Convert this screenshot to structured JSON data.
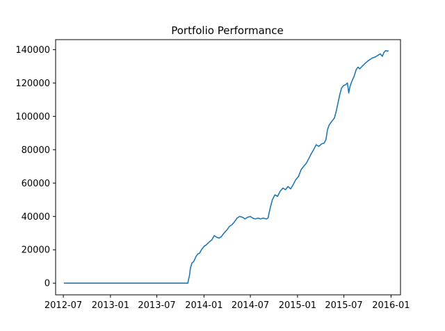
{
  "chart_data": {
    "type": "line",
    "title": "Portfolio Performance",
    "xlabel": "",
    "ylabel": "",
    "x_axis": "date",
    "xlim": [
      "2012-06-01",
      "2016-02-07"
    ],
    "ylim": [
      -7000,
      146000
    ],
    "grid": false,
    "legend": "none",
    "x_ticks": [
      "2012-07",
      "2013-01",
      "2013-07",
      "2014-01",
      "2014-07",
      "2015-01",
      "2015-07",
      "2016-01"
    ],
    "y_ticks": [
      0,
      20000,
      40000,
      60000,
      80000,
      100000,
      120000,
      140000
    ],
    "series": [
      {
        "color": "#1f77b4",
        "points": [
          [
            "2012-07-03",
            0
          ],
          [
            "2012-10-01",
            0
          ],
          [
            "2013-01-01",
            0
          ],
          [
            "2013-04-01",
            0
          ],
          [
            "2013-07-01",
            0
          ],
          [
            "2013-10-01",
            0
          ],
          [
            "2013-10-30",
            0
          ],
          [
            "2013-11-03",
            3000
          ],
          [
            "2013-11-06",
            5000
          ],
          [
            "2013-11-09",
            9000
          ],
          [
            "2013-11-15",
            12000
          ],
          [
            "2013-11-22",
            13000
          ],
          [
            "2013-12-01",
            16000
          ],
          [
            "2013-12-08",
            17500
          ],
          [
            "2013-12-15",
            18000
          ],
          [
            "2013-12-22",
            20000
          ],
          [
            "2014-01-01",
            22000
          ],
          [
            "2014-01-10",
            23000
          ],
          [
            "2014-01-20",
            24500
          ],
          [
            "2014-02-01",
            26000
          ],
          [
            "2014-02-10",
            28500
          ],
          [
            "2014-02-20",
            27500
          ],
          [
            "2014-03-01",
            27000
          ],
          [
            "2014-03-10",
            28000
          ],
          [
            "2014-03-20",
            30000
          ],
          [
            "2014-04-01",
            32000
          ],
          [
            "2014-04-10",
            34000
          ],
          [
            "2014-04-20",
            35000
          ],
          [
            "2014-05-01",
            37000
          ],
          [
            "2014-05-10",
            39000
          ],
          [
            "2014-05-20",
            40000
          ],
          [
            "2014-06-01",
            39500
          ],
          [
            "2014-06-10",
            38500
          ],
          [
            "2014-06-20",
            39500
          ],
          [
            "2014-07-01",
            40000
          ],
          [
            "2014-07-10",
            39000
          ],
          [
            "2014-07-20",
            38500
          ],
          [
            "2014-08-01",
            39000
          ],
          [
            "2014-08-10",
            38500
          ],
          [
            "2014-08-20",
            39000
          ],
          [
            "2014-09-01",
            38500
          ],
          [
            "2014-09-08",
            39000
          ],
          [
            "2014-09-12",
            42000
          ],
          [
            "2014-09-18",
            46000
          ],
          [
            "2014-09-25",
            50000
          ],
          [
            "2014-10-05",
            53000
          ],
          [
            "2014-10-15",
            52000
          ],
          [
            "2014-10-25",
            55000
          ],
          [
            "2014-11-05",
            57000
          ],
          [
            "2014-11-15",
            56000
          ],
          [
            "2014-11-25",
            58000
          ],
          [
            "2014-12-05",
            56500
          ],
          [
            "2014-12-15",
            59000
          ],
          [
            "2014-12-25",
            62000
          ],
          [
            "2015-01-05",
            64000
          ],
          [
            "2015-01-15",
            68000
          ],
          [
            "2015-01-25",
            70000
          ],
          [
            "2015-02-05",
            72000
          ],
          [
            "2015-02-15",
            75000
          ],
          [
            "2015-02-25",
            78000
          ],
          [
            "2015-03-05",
            80000
          ],
          [
            "2015-03-15",
            83000
          ],
          [
            "2015-03-25",
            82000
          ],
          [
            "2015-04-05",
            83500
          ],
          [
            "2015-04-15",
            84000
          ],
          [
            "2015-04-22",
            86000
          ],
          [
            "2015-04-28",
            92000
          ],
          [
            "2015-05-05",
            95000
          ],
          [
            "2015-05-15",
            97000
          ],
          [
            "2015-05-25",
            99000
          ],
          [
            "2015-06-01",
            103000
          ],
          [
            "2015-06-08",
            108000
          ],
          [
            "2015-06-15",
            113000
          ],
          [
            "2015-06-22",
            117000
          ],
          [
            "2015-06-30",
            118500
          ],
          [
            "2015-07-08",
            119000
          ],
          [
            "2015-07-15",
            120000
          ],
          [
            "2015-07-20",
            114000
          ],
          [
            "2015-07-25",
            118000
          ],
          [
            "2015-08-01",
            121000
          ],
          [
            "2015-08-10",
            124000
          ],
          [
            "2015-08-18",
            128000
          ],
          [
            "2015-08-25",
            129500
          ],
          [
            "2015-09-01",
            128500
          ],
          [
            "2015-09-10",
            130000
          ],
          [
            "2015-09-20",
            131500
          ],
          [
            "2015-10-01",
            133000
          ],
          [
            "2015-10-10",
            134000
          ],
          [
            "2015-10-20",
            135000
          ],
          [
            "2015-10-30",
            135500
          ],
          [
            "2015-11-10",
            136500
          ],
          [
            "2015-11-20",
            137500
          ],
          [
            "2015-11-28",
            136000
          ],
          [
            "2015-12-05",
            138500
          ],
          [
            "2015-12-12",
            139500
          ],
          [
            "2015-12-18",
            139000
          ],
          [
            "2015-12-22",
            139500
          ]
        ]
      }
    ]
  }
}
